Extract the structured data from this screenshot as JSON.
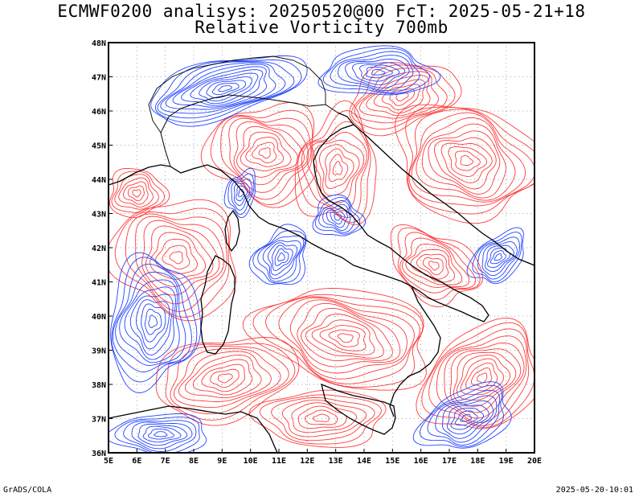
{
  "header": {
    "title_line1": "ECMWF0200 analisys: 20250520@00 FcT: 2025-05-21+18",
    "title_line2": "Relative Vorticity 700mb"
  },
  "map": {
    "lon_range": [
      5,
      20
    ],
    "lat_range": [
      36,
      48
    ],
    "x_ticks": [
      "5E",
      "6E",
      "7E",
      "8E",
      "9E",
      "10E",
      "11E",
      "12E",
      "13E",
      "14E",
      "15E",
      "16E",
      "17E",
      "18E",
      "19E",
      "20E"
    ],
    "y_ticks": [
      "36N",
      "37N",
      "38N",
      "39N",
      "40N",
      "41N",
      "42N",
      "43N",
      "44N",
      "45N",
      "46N",
      "47N",
      "48N"
    ],
    "colors": {
      "positive": "#ff3b3b",
      "negative": "#2244ff",
      "coast": "#000000",
      "grid": "#888888"
    },
    "contour_style": "dense positive (red) and negative (blue) vorticity contours"
  },
  "footer": {
    "left": "GrADS/COLA",
    "right": "2025-05-20-10:01"
  }
}
